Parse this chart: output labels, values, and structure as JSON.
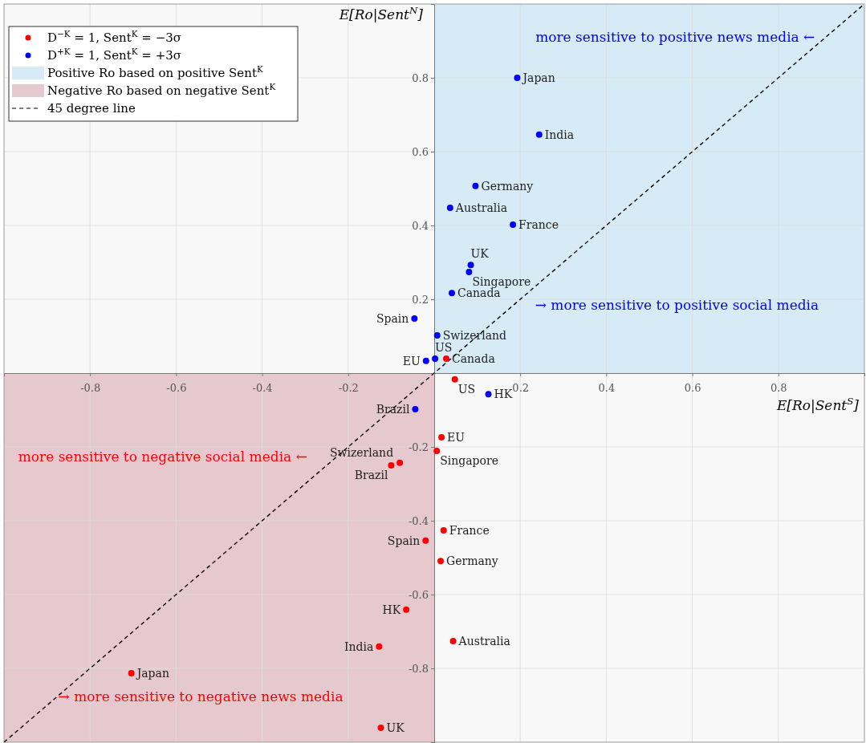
{
  "chart_data": {
    "type": "scatter",
    "xlabel": "E[Ro|Sent$^{S}$]",
    "ylabel": "E[Ro|Sent$^{N}$]",
    "xlim": [
      -1,
      1
    ],
    "ylim": [
      -1,
      1
    ],
    "xticks": [
      -0.8,
      -0.6,
      -0.4,
      -0.2,
      0.2,
      0.4,
      0.6,
      0.8
    ],
    "yticks": [
      -0.8,
      -0.6,
      -0.4,
      -0.2,
      0.2,
      0.4,
      0.6,
      0.8
    ],
    "grid": true,
    "legend": "top left",
    "series": [
      {
        "type": "area",
        "name": "Positive Ro based on positive Sent$^{K}$",
        "color": "#d6ebf5",
        "x": [
          0,
          1
        ],
        "values": [
          1,
          1
        ]
      },
      {
        "type": "area",
        "name": "Negative Ro based on negative Sent$^{K}$",
        "color": "#e6c8cf",
        "x": [
          -1,
          0
        ],
        "values": [
          -1,
          -1
        ]
      },
      {
        "type": "line",
        "name": "45 degree line",
        "color": "#000000",
        "line_style": "dashed",
        "x": [
          -1,
          1
        ],
        "values": [
          -1,
          1
        ]
      },
      {
        "name": "D$^{−K}$ = 1, Sent$^{K}$ = −3σ",
        "marker": "circle",
        "color": "#ff0000",
        "x": [
          0.028,
          0.048,
          0.017,
          0.006,
          -0.08,
          -0.1,
          0.022,
          -0.02,
          0.015,
          -0.065,
          0.044,
          -0.128,
          -0.704,
          -0.124
        ],
        "values": [
          0.039,
          -0.017,
          -0.174,
          -0.211,
          -0.243,
          -0.25,
          -0.426,
          -0.454,
          -0.509,
          -0.641,
          -0.726,
          -0.741,
          -0.813,
          -0.961
        ],
        "value_labels": [
          "Canada",
          "US",
          "EU",
          "Singapore",
          "Swizerland",
          "Brazil",
          "France",
          "Spain",
          "Germany",
          "HK",
          "Australia",
          "India",
          "Japan",
          "UK"
        ]
      },
      {
        "name": "D$^{+K}$ = 1, Sent$^{K}$ = +3σ",
        "marker": "circle",
        "color": "#0000ff",
        "x": [
          0.193,
          0.244,
          0.096,
          0.037,
          0.183,
          0.085,
          0.081,
          0.041,
          -0.046,
          0.007,
          0.002,
          -0.019,
          0.126,
          -0.044
        ],
        "values": [
          0.8,
          0.646,
          0.507,
          0.448,
          0.402,
          0.293,
          0.274,
          0.217,
          0.148,
          0.102,
          0.039,
          0.033,
          -0.057,
          -0.098
        ],
        "value_labels": [
          "Japan",
          "India",
          "Germany",
          "Australia",
          "France",
          "UK",
          "Singapore",
          "Canada",
          "Spain",
          "Swizerland",
          "US",
          "EU",
          "HK",
          "Brazil"
        ]
      }
    ],
    "annotations": [
      "more sensitive to positive news media ←",
      "→ more sensitive to positive social media",
      "more sensitive to negative social media ←",
      "→ more sensitive to negative news media"
    ]
  }
}
